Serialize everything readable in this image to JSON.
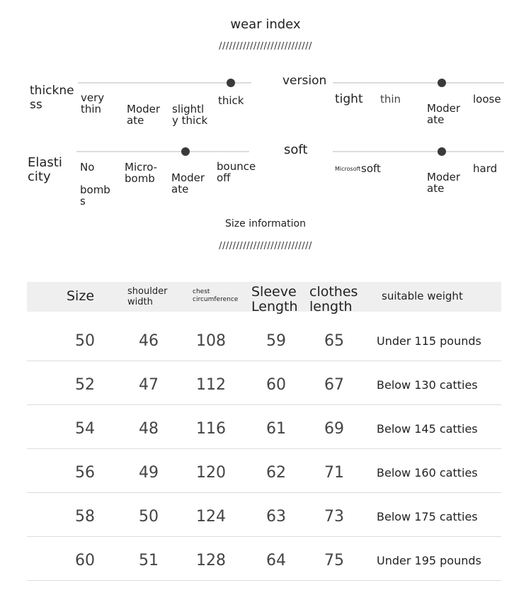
{
  "wear_index": {
    "title": "wear index",
    "divider": "///////////////////////////",
    "sliders": [
      {
        "name": "thickne\nss",
        "options": [
          "very\nthin",
          "Moder\nate",
          "slightl\ny thick",
          "thick"
        ],
        "selected": "thick"
      },
      {
        "name": "version",
        "options": [
          "tight",
          "thin",
          "Moder\nate",
          "loose"
        ],
        "selected": "Moderate"
      },
      {
        "name": "Elasti\ncity",
        "options": [
          "No\n\nbomb\ns",
          "Micro-\nbomb",
          "Moder\nate",
          "bounce\noff"
        ],
        "selected": "Moderate"
      },
      {
        "name": "soft",
        "options": [
          "Microsoft",
          "soft",
          "Moder\nate",
          "hard"
        ],
        "selected": "Moderate"
      }
    ]
  },
  "size_info": {
    "title": "Size information",
    "divider": "///////////////////////////",
    "headers": [
      "Size",
      "shoulder\nwidth",
      "chest\ncircumference",
      "Sleeve\nLength",
      "clothes\nlength",
      "suitable weight"
    ],
    "rows": [
      [
        "50",
        "46",
        "108",
        "59",
        "65",
        "Under 115 pounds"
      ],
      [
        "52",
        "47",
        "112",
        "60",
        "67",
        "Below 130 catties"
      ],
      [
        "54",
        "48",
        "116",
        "61",
        "69",
        "Below 145 catties"
      ],
      [
        "56",
        "49",
        "120",
        "62",
        "71",
        "Below 160 catties"
      ],
      [
        "58",
        "50",
        "124",
        "63",
        "73",
        "Below 175 catties"
      ],
      [
        "60",
        "51",
        "128",
        "64",
        "75",
        "Under 195 pounds"
      ]
    ]
  }
}
